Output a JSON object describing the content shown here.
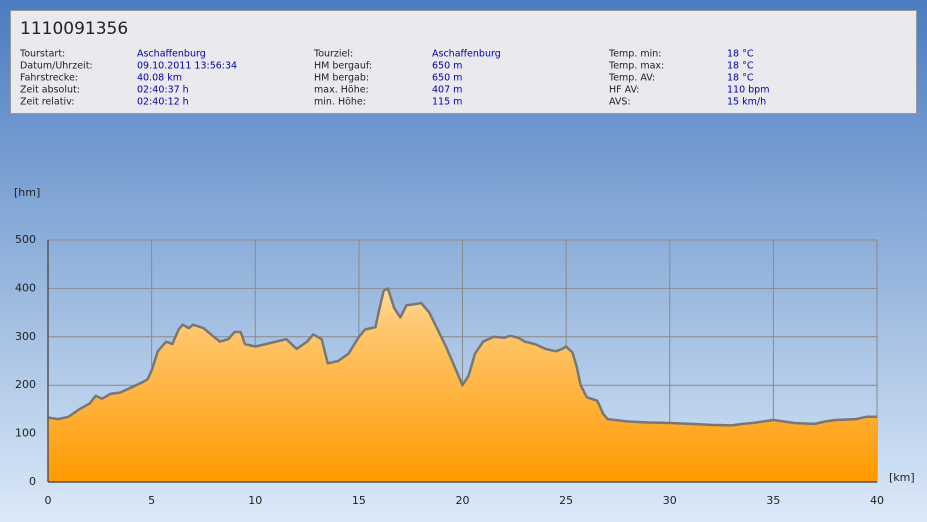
{
  "panel": {
    "title": "1110091356",
    "columns": [
      [
        [
          "Tourstart:",
          "Aschaffenburg"
        ],
        [
          "Datum/Uhrzeit:",
          "09.10.2011 13:56:34"
        ],
        [
          "Fahrstrecke:",
          "40.08 km"
        ],
        [
          "Zeit absolut:",
          "02:40:37 h"
        ],
        [
          "Zeit relativ:",
          "02:40:12 h"
        ]
      ],
      [
        [
          "Tourziel:",
          "Aschaffenburg"
        ],
        [
          "HM bergauf:",
          "650 m"
        ],
        [
          "HM bergab:",
          "650 m"
        ],
        [
          "max. Höhe:",
          "407 m"
        ],
        [
          "min. Höhe:",
          "115 m"
        ]
      ],
      [
        [
          "Temp. min:",
          "18 °C"
        ],
        [
          "Temp. max:",
          "18 °C"
        ],
        [
          "Temp. AV:",
          "18 °C"
        ],
        [
          "HF AV:",
          "110 bpm"
        ],
        [
          "AVS:",
          "15 km/h"
        ]
      ]
    ]
  },
  "chart_data": {
    "type": "area",
    "y_label": "[hm]",
    "x_label": "[km]",
    "x": [
      0,
      0.5,
      1,
      1.5,
      2,
      2.3,
      2.6,
      3,
      3.5,
      4,
      4.5,
      4.8,
      5,
      5.3,
      5.7,
      6,
      6.3,
      6.5,
      6.8,
      7,
      7.5,
      8,
      8.3,
      8.7,
      9,
      9.3,
      9.5,
      10,
      10.5,
      11,
      11.5,
      12,
      12.5,
      12.8,
      13.2,
      13.5,
      14,
      14.5,
      15,
      15.3,
      15.8,
      16,
      16.2,
      16.4,
      16.7,
      17,
      17.3,
      17.8,
      18,
      18.4,
      18.8,
      19.2,
      19.6,
      20,
      20.3,
      20.6,
      21,
      21.5,
      22,
      22.3,
      22.7,
      23,
      23.5,
      24,
      24.5,
      24.8,
      25,
      25.3,
      25.5,
      25.7,
      26,
      26.5,
      26.8,
      27,
      28,
      29,
      30,
      31,
      32,
      33,
      33.5,
      34,
      35,
      36,
      37,
      37.5,
      38,
      39,
      39.5,
      40
    ],
    "values": [
      133,
      130,
      135,
      150,
      162,
      178,
      172,
      182,
      185,
      195,
      205,
      212,
      230,
      270,
      290,
      285,
      315,
      325,
      318,
      325,
      318,
      300,
      290,
      295,
      310,
      310,
      285,
      280,
      285,
      290,
      295,
      275,
      290,
      305,
      295,
      245,
      250,
      265,
      300,
      315,
      320,
      360,
      395,
      400,
      360,
      340,
      365,
      368,
      370,
      350,
      315,
      280,
      240,
      200,
      220,
      265,
      290,
      300,
      298,
      302,
      298,
      290,
      285,
      275,
      270,
      275,
      280,
      268,
      240,
      200,
      175,
      168,
      140,
      130,
      125,
      123,
      122,
      120,
      118,
      117,
      120,
      122,
      128,
      122,
      120,
      125,
      128,
      130,
      135,
      135
    ],
    "xlim": [
      0,
      40
    ],
    "ylim": [
      0,
      500
    ],
    "xticks": [
      0,
      5,
      10,
      15,
      20,
      25,
      30,
      35,
      40
    ],
    "yticks": [
      0,
      100,
      200,
      300,
      400,
      500
    ],
    "grid": true,
    "color": "#ff9a00",
    "line_color": "#777777"
  }
}
